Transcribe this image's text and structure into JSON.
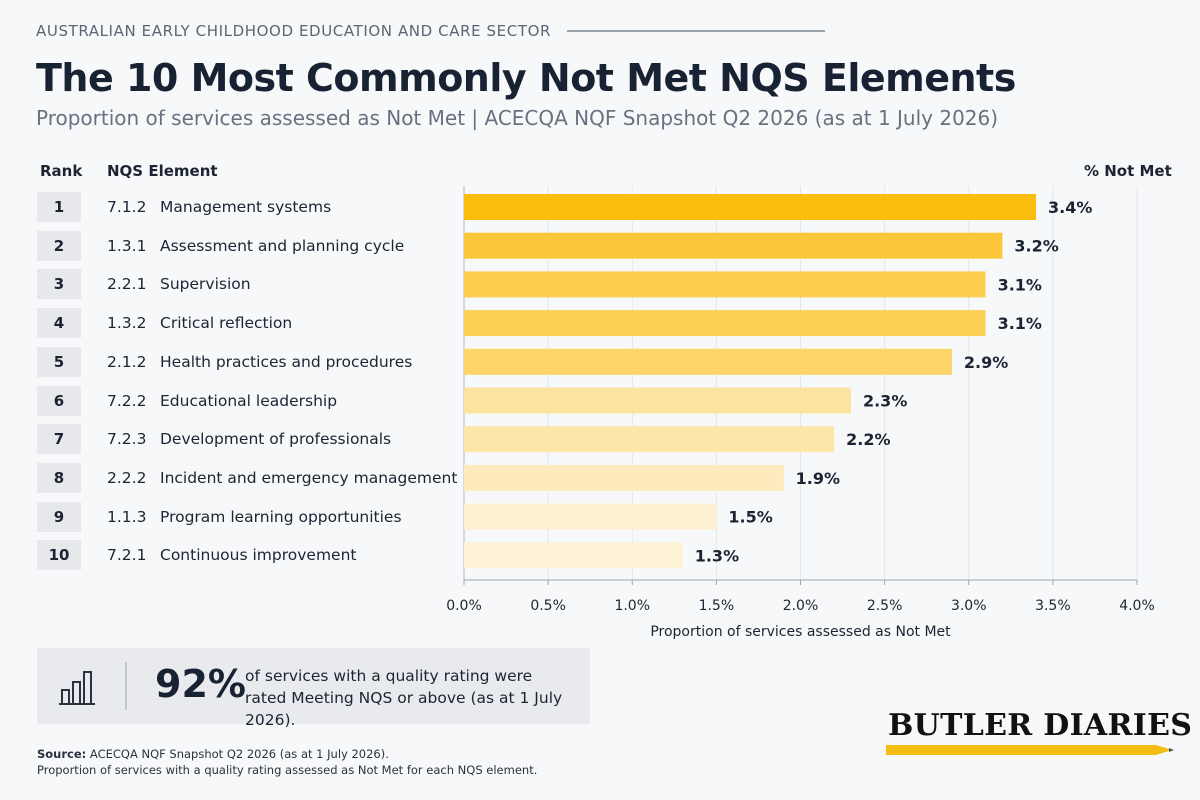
{
  "header": {
    "sector": "AUSTRALIAN EARLY CHILDHOOD EDUCATION AND CARE SECTOR",
    "title": "The 10 Most Commonly Not Met NQS Elements",
    "subtitle": "Proportion of services assessed as Not Met  |  ACECQA NQF Snapshot Q2 2026 (as at 1 July 2026)"
  },
  "table_headers": {
    "rank": "Rank",
    "element": "NQS Element",
    "value": "% Not Met"
  },
  "chart_data": {
    "type": "bar",
    "orientation": "horizontal",
    "ranks": [
      "1",
      "2",
      "3",
      "4",
      "5",
      "6",
      "7",
      "8",
      "9",
      "10"
    ],
    "codes": [
      "7.1.2",
      "1.3.1",
      "2.2.1",
      "1.3.2",
      "2.1.2",
      "7.2.2",
      "7.2.3",
      "2.2.2",
      "1.1.3",
      "7.2.1"
    ],
    "categories": [
      "Management systems",
      "Assessment and planning cycle",
      "Supervision",
      "Critical reflection",
      "Health practices and procedures",
      "Educational leadership",
      "Development of professionals",
      "Incident and emergency management",
      "Program learning opportunities",
      "Continuous improvement"
    ],
    "values": [
      3.4,
      3.2,
      3.1,
      3.1,
      2.9,
      2.3,
      2.2,
      1.9,
      1.5,
      1.3
    ],
    "value_labels": [
      "3.4%",
      "3.2%",
      "3.1%",
      "3.1%",
      "2.9%",
      "2.3%",
      "2.2%",
      "1.9%",
      "1.5%",
      "1.3%"
    ],
    "bar_colors": [
      "#fbbd0c",
      "#fcc73a",
      "#fccd4f",
      "#fccf55",
      "#fcd467",
      "#fde3a0",
      "#fde6aa",
      "#fdebbd",
      "#fef0cf",
      "#fef2d6"
    ],
    "xlim": [
      0,
      4.0
    ],
    "xticks": [
      "0.0%",
      "0.5%",
      "1.0%",
      "1.5%",
      "2.0%",
      "2.5%",
      "3.0%",
      "3.5%",
      "4.0%"
    ],
    "xlabel": "Proportion of services assessed as Not Met",
    "grid": "vertical"
  },
  "callout": {
    "icon": "bar-chart-icon",
    "big": "92%",
    "text": "of services with a quality rating were rated Meeting NQS or above (as at 1 July 2026)."
  },
  "brand": {
    "name": "BUTLER DIARIES",
    "accent": "#f4bd13"
  },
  "source": {
    "label": "Source:",
    "line1": "ACECQA NQF Snapshot Q2 2026 (as at 1 July 2026).",
    "line2": "Proportion of services with a quality rating assessed as Not Met for each NQS element."
  }
}
